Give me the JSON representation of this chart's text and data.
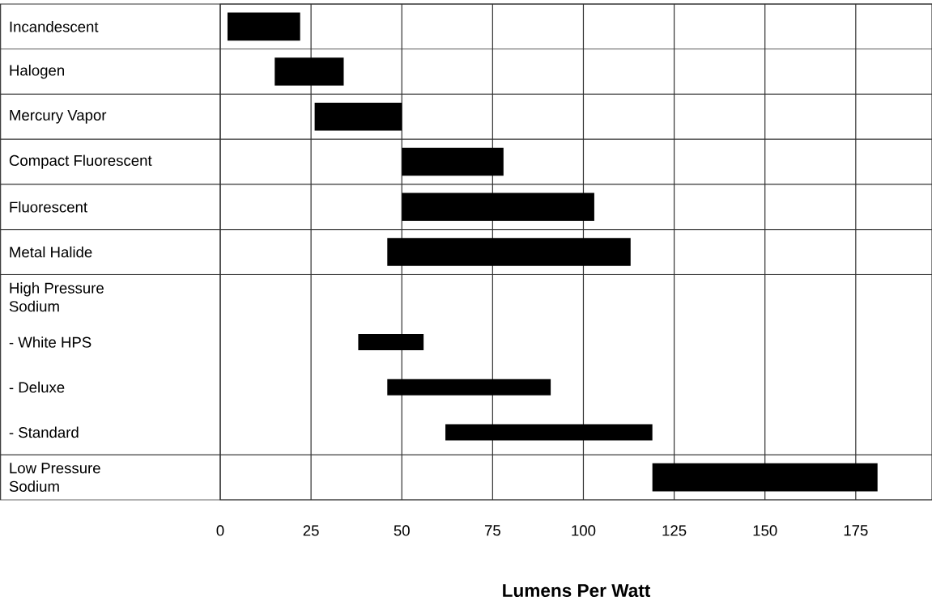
{
  "chart_data": {
    "type": "bar",
    "orientation": "horizontal",
    "categories": [
      "Incandescent",
      "Halogen",
      "Mercury Vapor",
      "Compact Fluorescent",
      "Fluorescent",
      "Metal Halide",
      "High Pressure Sodium",
      "- White HPS",
      "- Deluxe",
      "- Standard",
      "Low Pressure Sodium"
    ],
    "base": [
      2,
      15,
      26,
      50,
      50,
      46,
      null,
      38,
      46,
      62,
      119
    ],
    "values": [
      20,
      19,
      24,
      28,
      53,
      67,
      null,
      18,
      45,
      57,
      62
    ],
    "color": "#000000",
    "xlim": [
      0,
      196
    ],
    "xticks": [
      0,
      25,
      50,
      75,
      100,
      125,
      150,
      175
    ],
    "xlabel": "Lumens Per Watt",
    "grid": "x"
  }
}
